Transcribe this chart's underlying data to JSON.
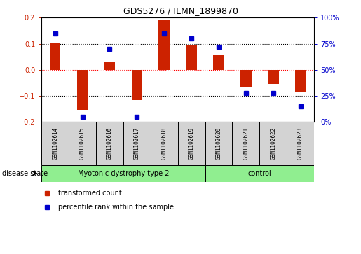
{
  "title": "GDS5276 / ILMN_1899870",
  "samples": [
    "GSM1102614",
    "GSM1102615",
    "GSM1102616",
    "GSM1102617",
    "GSM1102618",
    "GSM1102619",
    "GSM1102620",
    "GSM1102621",
    "GSM1102622",
    "GSM1102623"
  ],
  "red_values": [
    0.103,
    -0.155,
    0.03,
    -0.115,
    0.19,
    0.095,
    0.055,
    -0.065,
    -0.055,
    -0.085
  ],
  "blue_percentile": [
    85,
    5,
    70,
    5,
    85,
    80,
    72,
    28,
    28,
    15
  ],
  "ylim_left": [
    -0.2,
    0.2
  ],
  "ylim_right": [
    0,
    100
  ],
  "yticks_left": [
    -0.2,
    -0.1,
    0.0,
    0.1,
    0.2
  ],
  "yticks_right": [
    0,
    25,
    50,
    75,
    100
  ],
  "group1_label": "Myotonic dystrophy type 2",
  "group1_samples": 6,
  "group2_label": "control",
  "group2_samples": 4,
  "disease_state_label": "disease state",
  "legend_red": "transformed count",
  "legend_blue": "percentile rank within the sample",
  "bar_color": "#CC2200",
  "dot_color": "#0000CC",
  "bar_width": 0.4,
  "dot_size": 5,
  "group_color": "#90EE90",
  "sample_box_color": "#D3D3D3",
  "tick_color_left": "#CC2200",
  "tick_color_right": "#0000CC",
  "hline_color": "#000000",
  "zero_line_color": "#FF0000",
  "title_fontsize": 9,
  "tick_fontsize": 7,
  "label_fontsize": 7,
  "sample_fontsize": 5.5
}
